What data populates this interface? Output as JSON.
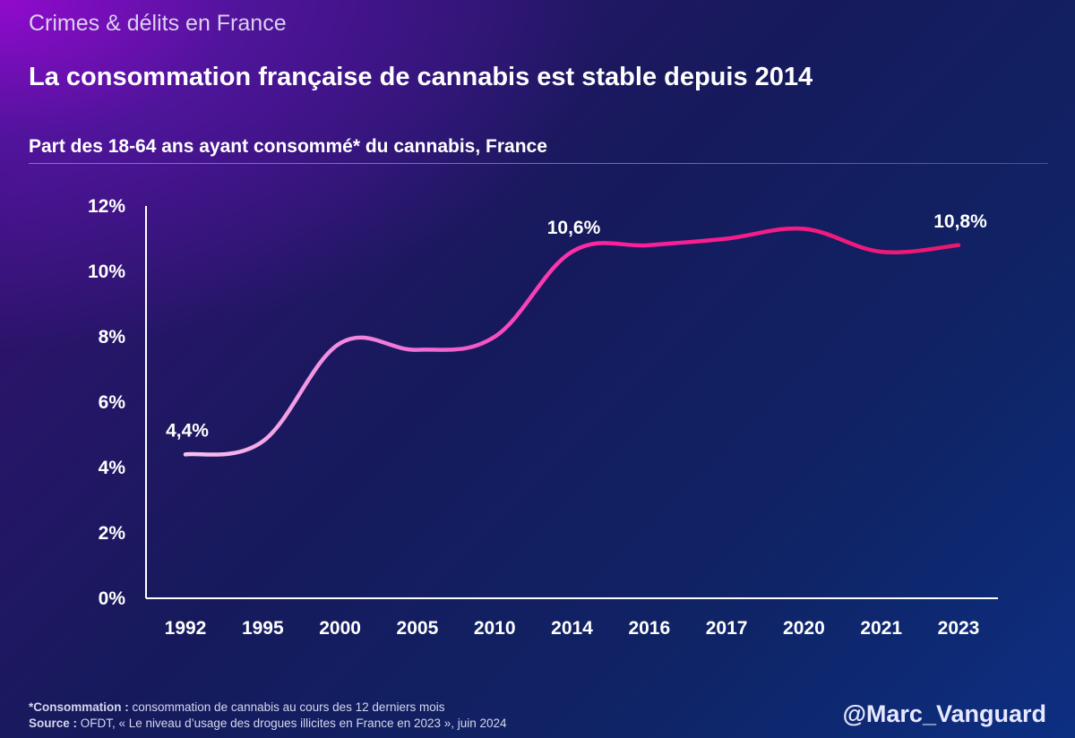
{
  "header": {
    "kicker": "Crimes & délits en France",
    "title": "La consommation française de cannabis est stable depuis 2014",
    "subtitle": "Part des 18-64 ans ayant consommé* du cannabis, France"
  },
  "chart_data": {
    "type": "line",
    "title": "La consommation française de cannabis est stable depuis 2014",
    "subtitle": "Part des 18-64 ans ayant consommé* du cannabis, France",
    "xlabel": "",
    "ylabel": "",
    "categories": [
      "1992",
      "1995",
      "2000",
      "2005",
      "2010",
      "2014",
      "2016",
      "2017",
      "2020",
      "2021",
      "2023"
    ],
    "series": [
      {
        "name": "Part des 18-64 ans ayant consommé du cannabis",
        "values": [
          4.4,
          4.8,
          7.8,
          7.6,
          8.0,
          10.6,
          10.8,
          11.0,
          11.3,
          10.6,
          10.8
        ]
      }
    ],
    "ylim": [
      0,
      12
    ],
    "yticks": [
      {
        "value": 0,
        "label": "0%"
      },
      {
        "value": 2,
        "label": "2%"
      },
      {
        "value": 4,
        "label": "4%"
      },
      {
        "value": 6,
        "label": "6%"
      },
      {
        "value": 8,
        "label": "8%"
      },
      {
        "value": 10,
        "label": "10%"
      },
      {
        "value": 12,
        "label": "12%"
      }
    ],
    "data_labels": [
      {
        "index": 0,
        "text": "4,4%"
      },
      {
        "index": 5,
        "text": "10,6%"
      },
      {
        "index": 10,
        "text": "10,8%"
      }
    ],
    "grid": false,
    "line_gradient": [
      "#f6c4ee",
      "#f070d8",
      "#ff1f9e",
      "#e8186e"
    ]
  },
  "footer": {
    "note_label": "*Consommation :",
    "note_text": " consommation de cannabis au cours des 12 derniers mois",
    "source_label": "Source :",
    "source_text": " OFDT, « Le niveau d’usage des drogues illicites en France en 2023 », juin 2024",
    "handle": "@Marc_Vanguard"
  }
}
